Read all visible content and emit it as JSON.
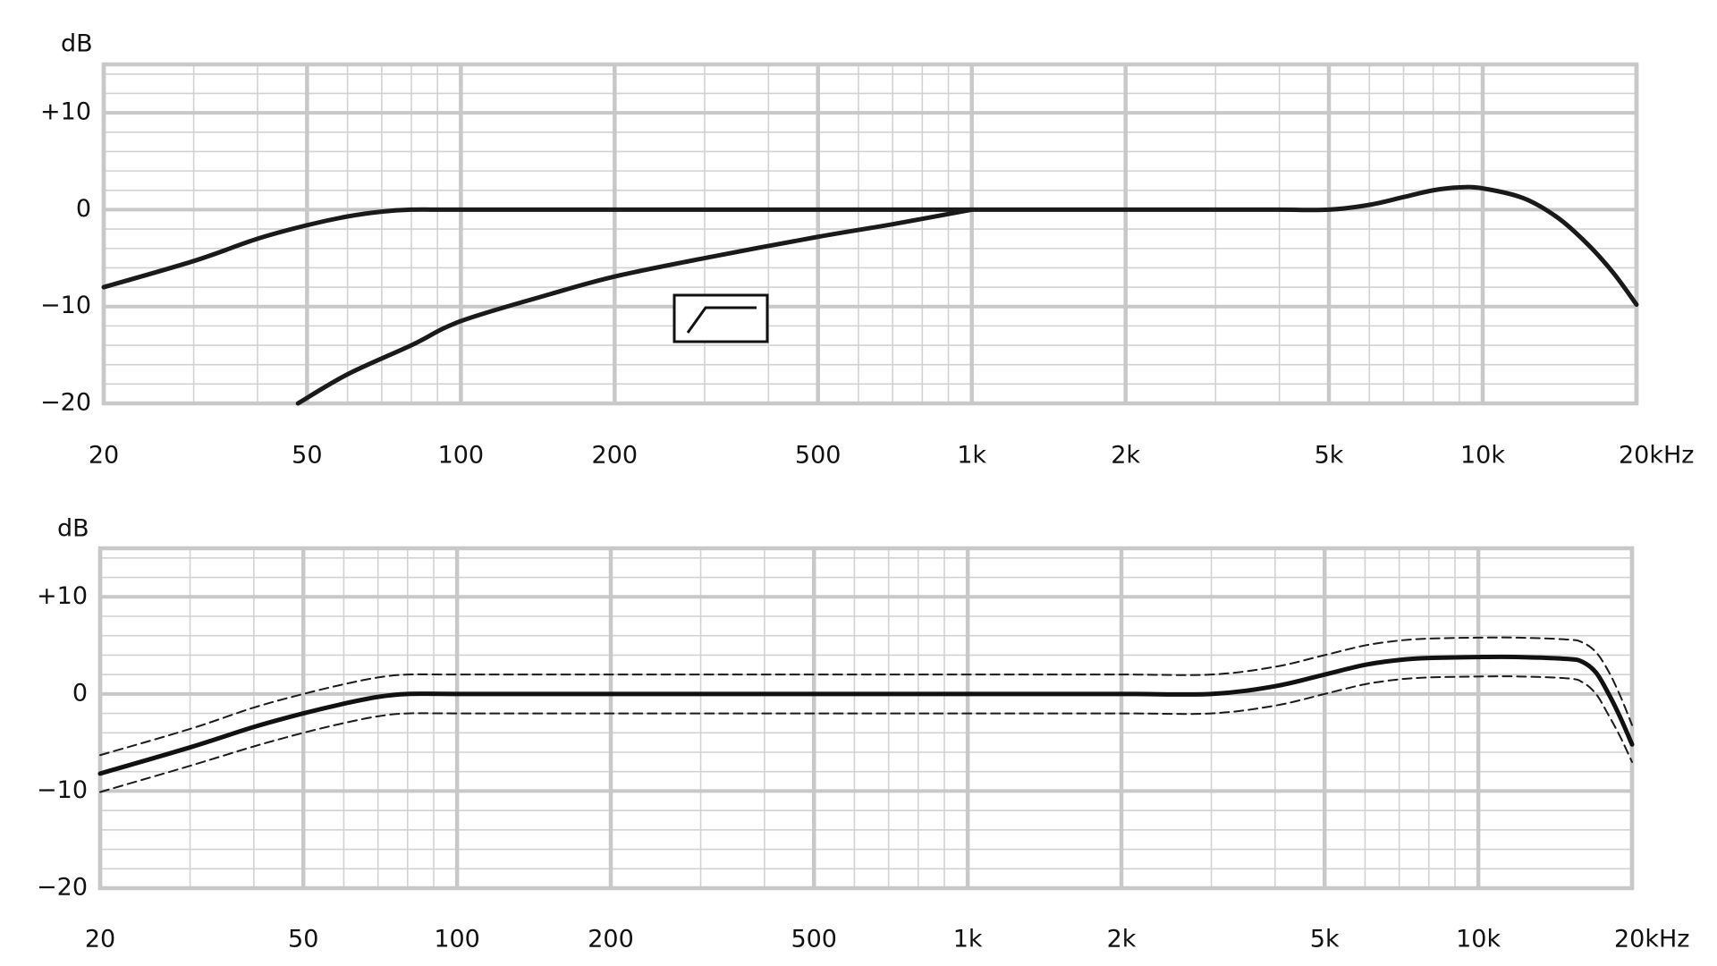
{
  "chart_data": [
    {
      "type": "line",
      "ylabel": "dB",
      "xscale": "log",
      "grid": true,
      "xlim": [
        20,
        20000
      ],
      "ylim": [
        -20,
        15
      ],
      "xticks": [
        20,
        50,
        100,
        200,
        500,
        {
          "value": 1000,
          "label": "1k"
        },
        {
          "value": 2000,
          "label": "2k"
        },
        {
          "value": 5000,
          "label": "5k"
        },
        {
          "value": 10000,
          "label": "10k"
        },
        {
          "value": 20000,
          "label": "20kHz"
        }
      ],
      "yticks": [
        {
          "value": -20,
          "label": "−20"
        },
        {
          "value": -10,
          "label": "−10"
        },
        0,
        {
          "value": 10,
          "label": "+10"
        }
      ],
      "series": [
        {
          "color": "#1a1a1a",
          "style": "solid",
          "x": [
            20,
            30,
            40,
            50,
            60,
            70,
            80,
            100,
            200,
            500,
            1000,
            2000,
            3000,
            4000,
            5000,
            6000,
            7000,
            8000,
            9000,
            10000,
            12000,
            14000,
            16000,
            18000,
            20000
          ],
          "values": [
            -8,
            -5.3,
            -3,
            -1.6,
            -0.7,
            -0.2,
            0,
            0,
            0,
            0,
            0,
            0,
            0,
            0,
            0,
            0.5,
            1.3,
            2.0,
            2.3,
            2.2,
            1.2,
            -0.8,
            -3.5,
            -6.5,
            -9.8
          ]
        },
        {
          "color": "#1a1a1a",
          "style": "solid",
          "x": [
            48,
            60,
            80,
            100,
            150,
            200,
            300,
            500,
            700,
            1000
          ],
          "values": [
            -20,
            -17,
            -14,
            -11.5,
            -8.7,
            -6.9,
            -5,
            -2.8,
            -1.5,
            0
          ]
        }
      ]
    },
    {
      "type": "line",
      "ylabel": "dB",
      "xscale": "log",
      "grid": true,
      "xlim": [
        20,
        20000
      ],
      "ylim": [
        -20,
        15
      ],
      "xticks": [
        20,
        50,
        100,
        200,
        500,
        {
          "value": 1000,
          "label": "1k"
        },
        {
          "value": 2000,
          "label": "2k"
        },
        {
          "value": 5000,
          "label": "5k"
        },
        {
          "value": 10000,
          "label": "10k"
        },
        {
          "value": 20000,
          "label": "20kHz"
        }
      ],
      "yticks": [
        {
          "value": -20,
          "label": "−20"
        },
        {
          "value": -10,
          "label": "−10"
        },
        0,
        {
          "value": 10,
          "label": "+10"
        }
      ],
      "series": [
        {
          "color": "#1a1a1a",
          "style": "dashed",
          "x": [
            20,
            30,
            40,
            50,
            60,
            70,
            80,
            100,
            200,
            500,
            1000,
            2000,
            3000,
            4000,
            5000,
            6000,
            7000,
            8000,
            10000,
            12000,
            15000,
            16000,
            17000,
            18000,
            19000,
            20000
          ],
          "values": [
            -6.3,
            -3.6,
            -1.4,
            0,
            1,
            1.7,
            2,
            2,
            2,
            2,
            2,
            2,
            2,
            2.8,
            4,
            5,
            5.5,
            5.7,
            5.8,
            5.8,
            5.6,
            5.3,
            4.3,
            2.3,
            -0.3,
            -3.2
          ]
        },
        {
          "color": "#1a1a1a",
          "style": "dashed",
          "x": [
            20,
            30,
            40,
            50,
            60,
            70,
            80,
            100,
            200,
            500,
            1000,
            2000,
            3000,
            4000,
            5000,
            6000,
            7000,
            8000,
            10000,
            12000,
            15000,
            16000,
            17000,
            18000,
            19000,
            20000
          ],
          "values": [
            -10.1,
            -7.4,
            -5.4,
            -4,
            -3,
            -2.3,
            -2,
            -2,
            -2,
            -2,
            -2,
            -2,
            -2,
            -1.2,
            0,
            1,
            1.5,
            1.7,
            1.8,
            1.8,
            1.6,
            1.2,
            0,
            -2.2,
            -4.5,
            -7
          ]
        },
        {
          "color": "#111111",
          "style": "solid",
          "x": [
            20,
            30,
            40,
            50,
            60,
            70,
            80,
            100,
            200,
            500,
            1000,
            2000,
            3000,
            4000,
            5000,
            6000,
            7000,
            8000,
            10000,
            12000,
            15000,
            16000,
            17000,
            18000,
            19000,
            20000
          ],
          "values": [
            -8.2,
            -5.5,
            -3.4,
            -2,
            -1,
            -0.3,
            0,
            0,
            0,
            0,
            0,
            0,
            0,
            0.8,
            2.0,
            3.0,
            3.5,
            3.7,
            3.8,
            3.8,
            3.6,
            3.3,
            2.2,
            0,
            -2.5,
            -5.2
          ]
        }
      ]
    }
  ]
}
